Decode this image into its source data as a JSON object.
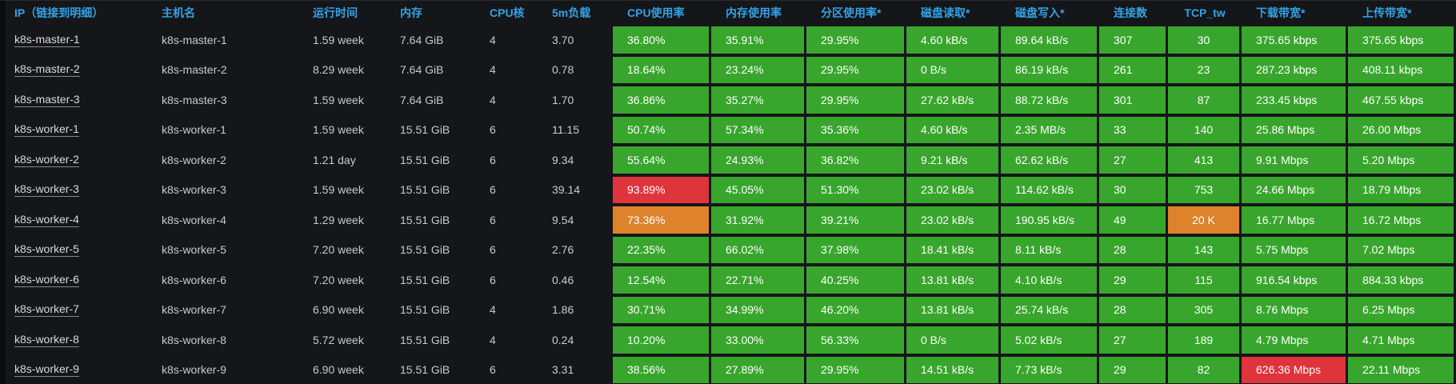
{
  "panel": {
    "name": "kubernetes-node-overview-table",
    "colors": {
      "background": "#141619",
      "edge": "#0b0c0e",
      "header_text": "#33a2e5",
      "cell_text": "#c9cacc",
      "link_text": "#d8d9da",
      "green": "#38a62c",
      "orange": "#de822c",
      "red": "#e0343c"
    }
  },
  "table": {
    "columns": [
      {
        "id": "ip",
        "label": "IP（链接到明细）",
        "type": "link"
      },
      {
        "id": "hostname",
        "label": "主机名"
      },
      {
        "id": "uptime",
        "label": "运行时间"
      },
      {
        "id": "memory",
        "label": "内存"
      },
      {
        "id": "cpu_cores",
        "label": "CPU核"
      },
      {
        "id": "load_5m",
        "label": "5m负载"
      },
      {
        "id": "cpu_usage",
        "label": "CPU使用率",
        "colored": true
      },
      {
        "id": "mem_usage",
        "label": "内存使用率",
        "colored": true
      },
      {
        "id": "partition_usage",
        "label": "分区使用率*",
        "colored": true
      },
      {
        "id": "disk_read",
        "label": "磁盘读取*",
        "colored": true
      },
      {
        "id": "disk_write",
        "label": "磁盘写入*",
        "colored": true
      },
      {
        "id": "connections",
        "label": "连接数",
        "colored": true
      },
      {
        "id": "tcp_tw",
        "label": "TCP_tw",
        "colored": true,
        "align": "center"
      },
      {
        "id": "download_bw",
        "label": "下载带宽*",
        "colored": true
      },
      {
        "id": "upload_bw",
        "label": "上传带宽*",
        "colored": true
      }
    ],
    "rows": [
      [
        "k8s-master-1",
        "k8s-master-1",
        "1.59 week",
        "7.64 GiB",
        "4",
        "3.70",
        "36.80%",
        "35.91%",
        "29.95%",
        "4.60 kB/s",
        "89.64 kB/s",
        "307",
        "30",
        "375.65 kbps",
        "375.65 kbps"
      ],
      [
        "k8s-master-2",
        "k8s-master-2",
        "8.29 week",
        "7.64 GiB",
        "4",
        "0.78",
        "18.64%",
        "23.24%",
        "29.95%",
        "0 B/s",
        "86.19 kB/s",
        "261",
        "23",
        "287.23 kbps",
        "408.11 kbps"
      ],
      [
        "k8s-master-3",
        "k8s-master-3",
        "1.59 week",
        "7.64 GiB",
        "4",
        "1.70",
        "36.86%",
        "35.27%",
        "29.95%",
        "27.62 kB/s",
        "88.72 kB/s",
        "301",
        "87",
        "233.45 kbps",
        "467.55 kbps"
      ],
      [
        "k8s-worker-1",
        "k8s-worker-1",
        "1.59 week",
        "15.51 GiB",
        "6",
        "11.15",
        "50.74%",
        "57.34%",
        "35.36%",
        "4.60 kB/s",
        "2.35 MB/s",
        "33",
        "140",
        "25.86 Mbps",
        "26.00 Mbps"
      ],
      [
        "k8s-worker-2",
        "k8s-worker-2",
        "1.21 day",
        "15.51 GiB",
        "6",
        "9.34",
        "55.64%",
        "24.93%",
        "36.82%",
        "9.21 kB/s",
        "62.62 kB/s",
        "27",
        "413",
        "9.91 Mbps",
        "5.20 Mbps"
      ],
      [
        "k8s-worker-3",
        "k8s-worker-3",
        "1.59 week",
        "15.51 GiB",
        "6",
        "39.14",
        {
          "v": "93.89%",
          "c": "red"
        },
        "45.05%",
        "51.30%",
        "23.02 kB/s",
        "114.62 kB/s",
        "30",
        "753",
        "24.66 Mbps",
        "18.79 Mbps"
      ],
      [
        "k8s-worker-4",
        "k8s-worker-4",
        "1.29 week",
        "15.51 GiB",
        "6",
        "9.54",
        {
          "v": "73.36%",
          "c": "orange"
        },
        "31.92%",
        "39.21%",
        "23.02 kB/s",
        "190.95 kB/s",
        "49",
        {
          "v": "20 K",
          "c": "orange"
        },
        "16.77 Mbps",
        "16.72 Mbps"
      ],
      [
        "k8s-worker-5",
        "k8s-worker-5",
        "7.20 week",
        "15.51 GiB",
        "6",
        "2.76",
        "22.35%",
        "66.02%",
        "37.98%",
        "18.41 kB/s",
        "8.11 kB/s",
        "28",
        "143",
        "5.75 Mbps",
        "7.02 Mbps"
      ],
      [
        "k8s-worker-6",
        "k8s-worker-6",
        "7.20 week",
        "15.51 GiB",
        "6",
        "0.46",
        "12.54%",
        "22.71%",
        "40.25%",
        "13.81 kB/s",
        "4.10 kB/s",
        "29",
        "115",
        "916.54 kbps",
        "884.33 kbps"
      ],
      [
        "k8s-worker-7",
        "k8s-worker-7",
        "6.90 week",
        "15.51 GiB",
        "4",
        "1.86",
        "30.71%",
        "34.99%",
        "46.20%",
        "13.81 kB/s",
        "25.74 kB/s",
        "28",
        "305",
        "8.76 Mbps",
        "6.25 Mbps"
      ],
      [
        "k8s-worker-8",
        "k8s-worker-8",
        "5.72 week",
        "15.51 GiB",
        "4",
        "0.24",
        "10.20%",
        "33.00%",
        "56.33%",
        "0 B/s",
        "5.02 kB/s",
        "27",
        "189",
        "4.79 Mbps",
        "4.71 Mbps"
      ],
      [
        "k8s-worker-9",
        "k8s-worker-9",
        "6.90 week",
        "15.51 GiB",
        "6",
        "3.31",
        "38.56%",
        "27.89%",
        "29.95%",
        "14.51 kB/s",
        "7.73 kB/s",
        "29",
        "82",
        {
          "v": "626.36 Mbps",
          "c": "red"
        },
        "22.11 Mbps"
      ]
    ]
  }
}
